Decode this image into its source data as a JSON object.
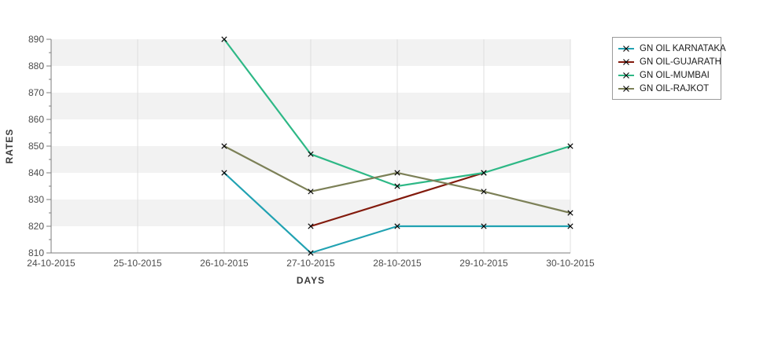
{
  "axes_titles": {
    "x": "DAYS",
    "y": "RATES"
  },
  "chart_data": {
    "type": "line",
    "title": "",
    "xlabel": "DAYS",
    "ylabel": "RATES",
    "categories": [
      "24-10-2015",
      "25-10-2015",
      "26-10-2015",
      "27-10-2015",
      "28-10-2015",
      "29-10-2015",
      "30-10-2015"
    ],
    "yticks": [
      810,
      820,
      830,
      840,
      850,
      860,
      870,
      880,
      890
    ],
    "ylim": [
      810,
      890
    ],
    "legend_position": "top-right",
    "grid": {
      "vertical_gridlines": true,
      "horizontal_bands": true
    },
    "band_color": "#f2f2f2",
    "grid_color": "#dfdfdf",
    "axis_color": "#7d7d7d",
    "tick_label_color": "#4c4c4c",
    "marker": {
      "shape": "x",
      "color": "#000000"
    },
    "series": [
      {
        "name": "GN OIL KARNATAKA",
        "color": "#21a2b2",
        "values": [
          null,
          null,
          840,
          810,
          820,
          820,
          820
        ]
      },
      {
        "name": "GN OIL-GUJARATH",
        "color": "#821a0c",
        "values": [
          null,
          null,
          null,
          820,
          null,
          840,
          null
        ]
      },
      {
        "name": "GN OIL-MUMBAI",
        "color": "#2eb886",
        "values": [
          null,
          null,
          890,
          847,
          835,
          840,
          850
        ]
      },
      {
        "name": "GN OIL-RAJKOT",
        "color": "#7c8057",
        "values": [
          null,
          null,
          850,
          833,
          840,
          833,
          825
        ]
      }
    ]
  }
}
